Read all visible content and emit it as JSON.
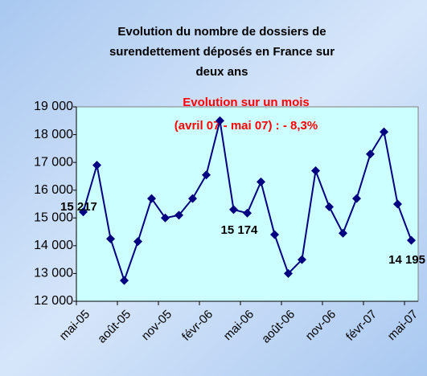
{
  "chart_data": {
    "type": "line",
    "title": [
      "Evolution du nombre de dossiers de",
      "surendettement déposés en France sur",
      "deux ans"
    ],
    "annotation": [
      "Evolution sur un mois",
      "(avril 07 - mai 07) : - 8,3%"
    ],
    "categories": [
      "mai-05",
      null,
      null,
      "août-05",
      null,
      null,
      "nov-05",
      null,
      null,
      "févr-06",
      null,
      null,
      "mai-06",
      null,
      null,
      "août-06",
      null,
      null,
      "nov-06",
      null,
      null,
      "févr-07",
      null,
      null,
      "mai-07"
    ],
    "values": [
      15217,
      16900,
      14250,
      12750,
      14150,
      15700,
      15000,
      15100,
      15700,
      16550,
      18500,
      15300,
      15174,
      16300,
      14400,
      13000,
      13500,
      16700,
      15400,
      14450,
      15700,
      17300,
      18100,
      15500,
      14195
    ],
    "value_labels": [
      "15 217",
      null,
      null,
      null,
      null,
      null,
      null,
      null,
      null,
      null,
      null,
      null,
      "15 174",
      null,
      null,
      null,
      null,
      null,
      null,
      null,
      null,
      null,
      null,
      null,
      "14 195"
    ],
    "color": "#000080",
    "ylim": [
      12000,
      19000
    ],
    "yticks": [
      {
        "value": 12000,
        "label": "12 000"
      },
      {
        "value": 13000,
        "label": "13 000"
      },
      {
        "value": 14000,
        "label": "14 000"
      },
      {
        "value": 15000,
        "label": "15 000"
      },
      {
        "value": 16000,
        "label": "16 000"
      },
      {
        "value": 17000,
        "label": "17 000"
      },
      {
        "value": 18000,
        "label": "18 000"
      },
      {
        "value": 19000,
        "label": "19 000"
      }
    ]
  }
}
